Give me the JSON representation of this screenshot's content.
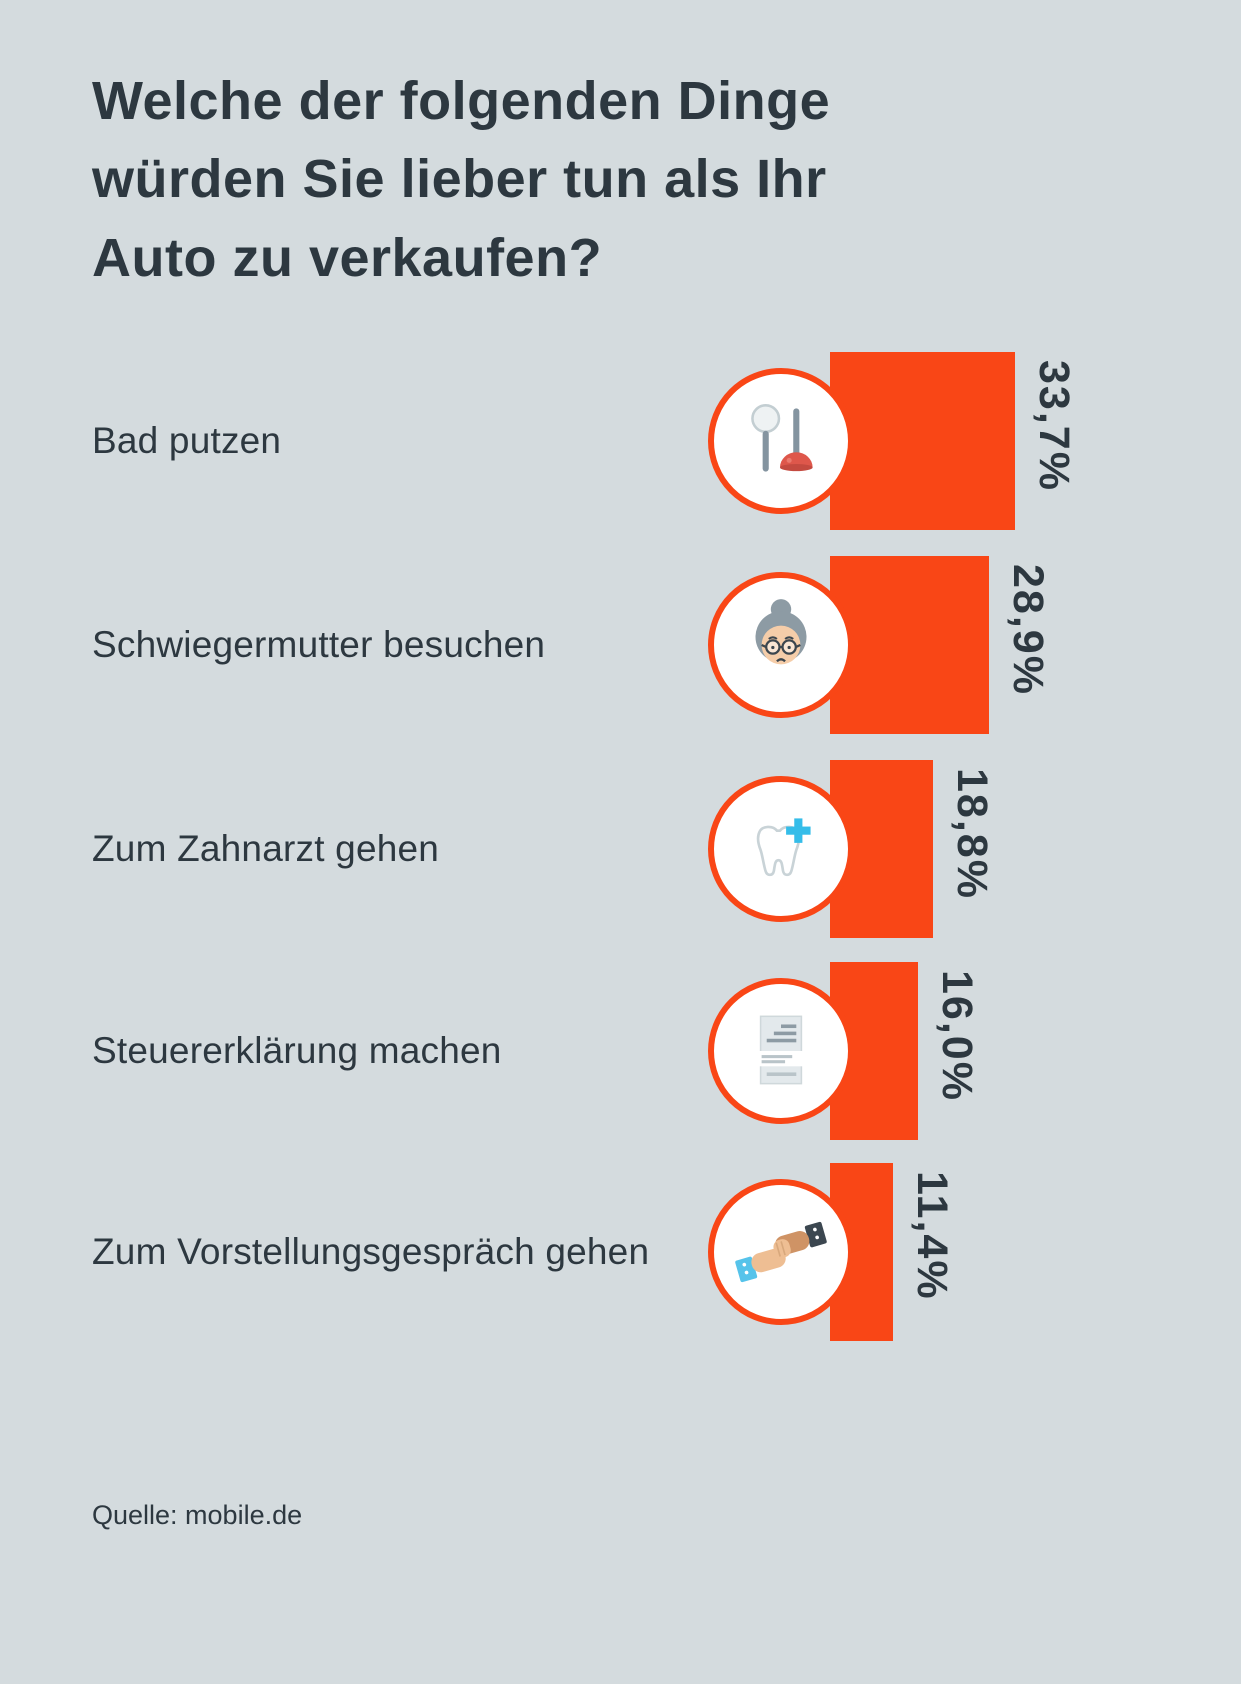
{
  "page": {
    "title": "Welche der folgenden Dinge würden Sie lieber tun als Ihr Auto zu verkaufen?",
    "source": "Quelle: mobile.de"
  },
  "colors": {
    "background": "#d4dbde",
    "bar": "#f94616",
    "text": "#2d3840",
    "icon_circle_fill": "#ffffff",
    "icon_circle_border": "#f94616",
    "dentist_cross": "#35bde9",
    "plunger_red": "#de574b",
    "icon_gray": "#8d9ba4"
  },
  "rows": [
    {
      "label": "Bad putzen",
      "value_label": "33,7%",
      "icon": "toilet-brush-icon"
    },
    {
      "label": "Schwiegermutter besuchen",
      "value_label": "28,9%",
      "icon": "mother-in-law-icon"
    },
    {
      "label": "Zum Zahnarzt gehen",
      "value_label": "18,8%",
      "icon": "tooth-dentist-icon"
    },
    {
      "label": "Steuererklärung machen",
      "value_label": "16,0%",
      "icon": "tax-form-icon"
    },
    {
      "label": "Zum Vorstellungsgespräch gehen",
      "value_label": "11,4%",
      "icon": "handshake-icon"
    }
  ],
  "chart_data": {
    "type": "bar",
    "orientation": "horizontal",
    "title": "Welche der folgenden Dinge würden Sie lieber tun als Ihr Auto zu verkaufen?",
    "categories": [
      "Bad putzen",
      "Schwiegermutter besuchen",
      "Zum Zahnarzt gehen",
      "Steuererklärung machen",
      "Zum Vorstellungsgespräch gehen"
    ],
    "values": [
      33.7,
      28.9,
      18.8,
      16.0,
      11.4
    ],
    "value_labels": [
      "33,7%",
      "28,9%",
      "18,8%",
      "16,0%",
      "11,4%"
    ],
    "unit": "%",
    "xlim": [
      0,
      35
    ],
    "grid": false,
    "legend": false,
    "bar_color": "#f94616",
    "source": "Quelle: mobile.de"
  }
}
